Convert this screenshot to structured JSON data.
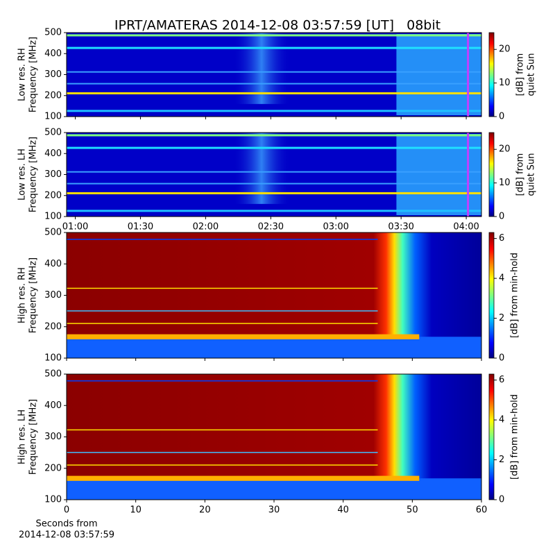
{
  "title": "IPRT/AMATERAS 2014-12-08 03:57:59 [UT]   08bit",
  "chart_data": [
    {
      "type": "spectrogram",
      "ylabel": [
        "Low res. RH",
        "Frequency [MHz]"
      ],
      "xlim": [
        "00:56",
        "04:07"
      ],
      "xticks": [
        "01:00",
        "01:30",
        "02:00",
        "02:30",
        "03:00",
        "03:30",
        "04:00"
      ],
      "show_xticklabels": false,
      "ylim": [
        100,
        500
      ],
      "yticks": [
        100,
        200,
        300,
        400,
        500
      ],
      "colorbar": {
        "label": [
          "[dB] from",
          "quiet Sun"
        ],
        "lim": [
          0,
          25
        ],
        "ticks": [
          0,
          10,
          20
        ]
      }
    },
    {
      "type": "spectrogram",
      "ylabel": [
        "Low res. LH",
        "Frequency [MHz]"
      ],
      "xlim": [
        "00:56",
        "04:07"
      ],
      "xticks": [
        "01:00",
        "01:30",
        "02:00",
        "02:30",
        "03:00",
        "03:30",
        "04:00"
      ],
      "show_xticklabels": true,
      "ylim": [
        100,
        500
      ],
      "yticks": [
        100,
        200,
        300,
        400,
        500
      ],
      "colorbar": {
        "label": [
          "[dB] from",
          "quiet Sun"
        ],
        "lim": [
          0,
          25
        ],
        "ticks": [
          0,
          10,
          20
        ]
      }
    },
    {
      "type": "spectrogram",
      "ylabel": [
        "High res. RH",
        "Frequency [MHz]"
      ],
      "xlim": [
        0,
        60
      ],
      "xticks": [
        0,
        10,
        20,
        30,
        40,
        50,
        60
      ],
      "show_xticklabels": false,
      "ylim": [
        100,
        500
      ],
      "yticks": [
        100,
        200,
        300,
        400,
        500
      ],
      "colorbar": {
        "label": [
          "[dB] from min-hold"
        ],
        "lim": [
          0,
          6.3
        ],
        "ticks": [
          0,
          2,
          4,
          6
        ]
      }
    },
    {
      "type": "spectrogram",
      "ylabel": [
        "High res. LH",
        "Frequency [MHz]"
      ],
      "xlim": [
        0,
        60
      ],
      "xticks": [
        0,
        10,
        20,
        30,
        40,
        50,
        60
      ],
      "show_xticklabels": true,
      "xlabel": [
        "Seconds from",
        "2014-12-08 03:57:59"
      ],
      "ylim": [
        100,
        500
      ],
      "yticks": [
        100,
        200,
        300,
        400,
        500
      ],
      "colorbar": {
        "label": [
          "[dB] from min-hold"
        ],
        "lim": [
          0,
          6.3
        ],
        "ticks": [
          0,
          2,
          4,
          6
        ]
      }
    }
  ]
}
